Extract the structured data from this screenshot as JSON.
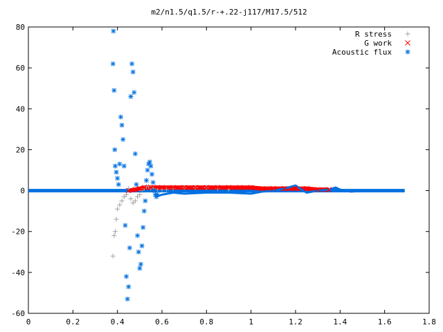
{
  "chart_data": {
    "type": "scatter",
    "title": "m2/n1.5/q1.5/r-+.22-j117/M17.5/512",
    "xlabel": "",
    "ylabel": "",
    "xlim": [
      0,
      1.8
    ],
    "ylim": [
      -60,
      80
    ],
    "x_ticks": [
      0,
      0.2,
      0.4,
      0.6,
      0.8,
      1,
      1.2,
      1.4,
      1.6,
      1.8
    ],
    "x_tick_labels": [
      "0",
      "0.2",
      "0.4",
      "0.6",
      "0.8",
      "1",
      "1.2",
      "1.4",
      "1.6",
      "1.8"
    ],
    "y_ticks": [
      -60,
      -40,
      -20,
      0,
      20,
      40,
      60,
      80
    ],
    "y_tick_labels": [
      "-60",
      "-40",
      "-20",
      "0",
      "20",
      "40",
      "60",
      "80"
    ],
    "grid": false,
    "legend_position": "top-right",
    "series": [
      {
        "name": "R stress",
        "marker": "plus",
        "color": "#a0a0a0",
        "x": [
          0.38,
          0.385,
          0.39,
          0.395,
          0.4,
          0.41,
          0.42,
          0.43,
          0.44,
          0.45,
          0.46,
          0.47,
          0.48,
          0.49,
          0.5,
          0.51,
          0.52,
          0.53,
          0.54,
          0.55,
          0.56,
          0.58,
          0.6,
          0.62,
          0.65,
          0.7,
          0.75,
          0.8,
          0.85,
          0.9
        ],
        "y": [
          -32,
          -22,
          -20,
          -14,
          -9,
          -7,
          -5,
          -3,
          -2,
          1,
          -4,
          -6,
          -5,
          -3,
          -2,
          0,
          1,
          2,
          2,
          1,
          1,
          0.5,
          0.5,
          0.5,
          1,
          1.5,
          1.5,
          1.5,
          1,
          0.5
        ]
      },
      {
        "name": "G work",
        "marker": "cross",
        "color": "#ff0000",
        "x": [
          0.45,
          0.48,
          0.5,
          0.52,
          0.55,
          0.58,
          0.6,
          0.65,
          0.7,
          0.75,
          0.8,
          0.85,
          0.9,
          0.95,
          1.0,
          1.05,
          1.1,
          1.15,
          1.2,
          1.25,
          1.3,
          1.35
        ],
        "y": [
          0,
          0.5,
          1,
          1.5,
          1.5,
          1.5,
          1.5,
          1.5,
          1.5,
          1.5,
          1.5,
          1.5,
          1.5,
          1.5,
          1.5,
          1,
          1,
          1,
          1,
          1,
          0.5,
          0.5
        ]
      },
      {
        "name": "Acoustic flux",
        "marker": "star",
        "color": "#0070e0",
        "x": [
          0.38,
          0.382,
          0.385,
          0.388,
          0.39,
          0.395,
          0.4,
          0.405,
          0.41,
          0.415,
          0.42,
          0.425,
          0.43,
          0.435,
          0.44,
          0.445,
          0.45,
          0.455,
          0.46,
          0.465,
          0.47,
          0.475,
          0.48,
          0.485,
          0.49,
          0.495,
          0.5,
          0.505,
          0.51,
          0.515,
          0.52,
          0.525,
          0.53,
          0.535,
          0.54,
          0.545,
          0.55,
          0.555,
          0.56,
          0.565,
          0.57,
          0.575,
          0.58
        ],
        "y": [
          62,
          78,
          49,
          20,
          12,
          9,
          6,
          3,
          13,
          36,
          32,
          25,
          12,
          -17,
          -42,
          -53,
          -47,
          -28,
          46,
          62,
          58,
          48,
          18,
          3,
          -22,
          -30,
          -38,
          -36,
          -27,
          -18,
          -10,
          -5,
          5,
          10,
          13,
          14,
          12,
          8,
          4,
          0,
          -2,
          -3,
          -2
        ]
      }
    ]
  }
}
